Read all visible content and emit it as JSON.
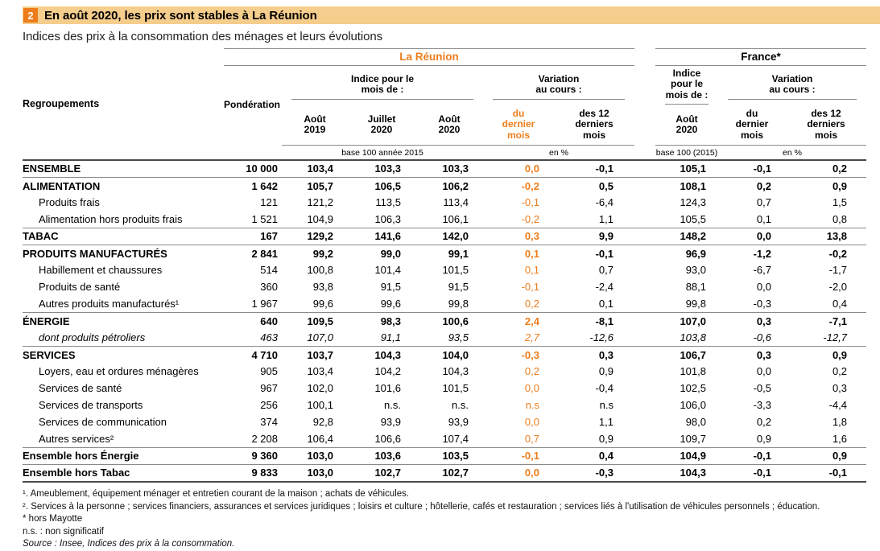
{
  "colors": {
    "orange": "#ed7d1c",
    "band": "#f5cd8c"
  },
  "header": {
    "badge": "2",
    "title": "En août 2020, les prix sont stables à La Réunion",
    "subtitle": "Indices des prix à la consommation des ménages et leurs évolutions"
  },
  "table": {
    "corner_label": "Regroupements",
    "ponderation_label": "Pondération",
    "reunion": {
      "title": "La Réunion",
      "index_group": "Indice pour le\nmois de :",
      "variation_group": "Variation\nau cours :",
      "cols": [
        "Août\n2019",
        "Juillet\n2020",
        "Août\n2020",
        "du\ndernier\nmois",
        "des 12\nderniers\nmois"
      ],
      "base_note": "base 100 année 2015",
      "unit_note": "en %"
    },
    "france": {
      "title": "France*",
      "index_group": "Indice pour le\nmois de :",
      "variation_group": "Variation\nau cours :",
      "cols": [
        "Août\n2020",
        "du\ndernier\nmois",
        "des 12\nderniers\nmois"
      ],
      "base_note": "base 100 (2015)",
      "unit_note": "en %"
    },
    "rows": [
      {
        "label": "ENSEMBLE",
        "bold": true,
        "indent": false,
        "italic": false,
        "sep": true,
        "values": [
          "10 000",
          "103,4",
          "103,3",
          "103,3",
          "0,0",
          "-0,1",
          "105,1",
          "-0,1",
          "0,2"
        ]
      },
      {
        "label": "ALIMENTATION",
        "bold": true,
        "indent": false,
        "italic": false,
        "sep": false,
        "values": [
          "1 642",
          "105,7",
          "106,5",
          "106,2",
          "-0,2",
          "0,5",
          "108,1",
          "0,2",
          "0,9"
        ]
      },
      {
        "label": "Produits frais",
        "bold": false,
        "indent": true,
        "italic": false,
        "sep": false,
        "values": [
          "121",
          "121,2",
          "113,5",
          "113,4",
          "-0,1",
          "-6,4",
          "124,3",
          "0,7",
          "1,5"
        ]
      },
      {
        "label": "Alimentation hors produits frais",
        "bold": false,
        "indent": true,
        "italic": false,
        "sep": true,
        "values": [
          "1 521",
          "104,9",
          "106,3",
          "106,1",
          "-0,2",
          "1,1",
          "105,5",
          "0,1",
          "0,8"
        ]
      },
      {
        "label": "TABAC",
        "bold": true,
        "indent": false,
        "italic": false,
        "sep": true,
        "values": [
          "167",
          "129,2",
          "141,6",
          "142,0",
          "0,3",
          "9,9",
          "148,2",
          "0,0",
          "13,8"
        ]
      },
      {
        "label": "PRODUITS MANUFACTURÉS",
        "bold": true,
        "indent": false,
        "italic": false,
        "sep": false,
        "values": [
          "2 841",
          "99,2",
          "99,0",
          "99,1",
          "0,1",
          "-0,1",
          "96,9",
          "-1,2",
          "-0,2"
        ]
      },
      {
        "label": "Habillement et chaussures",
        "bold": false,
        "indent": true,
        "italic": false,
        "sep": false,
        "values": [
          "514",
          "100,8",
          "101,4",
          "101,5",
          "0,1",
          "0,7",
          "93,0",
          "-6,7",
          "-1,7"
        ]
      },
      {
        "label": "Produits de santé",
        "bold": false,
        "indent": true,
        "italic": false,
        "sep": false,
        "values": [
          "360",
          "93,8",
          "91,5",
          "91,5",
          "-0,1",
          "-2,4",
          "88,1",
          "0,0",
          "-2,0"
        ]
      },
      {
        "label": "Autres produits manufacturés¹",
        "bold": false,
        "indent": true,
        "italic": false,
        "sep": true,
        "values": [
          "1 967",
          "99,6",
          "99,6",
          "99,8",
          "0,2",
          "0,1",
          "99,8",
          "-0,3",
          "0,4"
        ]
      },
      {
        "label": "ÉNERGIE",
        "bold": true,
        "indent": false,
        "italic": false,
        "sep": false,
        "values": [
          "640",
          "109,5",
          "98,3",
          "100,6",
          "2,4",
          "-8,1",
          "107,0",
          "0,3",
          "-7,1"
        ]
      },
      {
        "label": "dont produits pétroliers",
        "bold": false,
        "indent": true,
        "italic": true,
        "sep": true,
        "values": [
          "463",
          "107,0",
          "91,1",
          "93,5",
          "2,7",
          "-12,6",
          "103,8",
          "-0,6",
          "-12,7"
        ]
      },
      {
        "label": "SERVICES",
        "bold": true,
        "indent": false,
        "italic": false,
        "sep": false,
        "values": [
          "4 710",
          "103,7",
          "104,3",
          "104,0",
          "-0,3",
          "0,3",
          "106,7",
          "0,3",
          "0,9"
        ]
      },
      {
        "label": "Loyers, eau et ordures ménagères",
        "bold": false,
        "indent": true,
        "italic": false,
        "sep": false,
        "values": [
          "905",
          "103,4",
          "104,2",
          "104,3",
          "0,2",
          "0,9",
          "101,8",
          "0,0",
          "0,2"
        ]
      },
      {
        "label": "Services de santé",
        "bold": false,
        "indent": true,
        "italic": false,
        "sep": false,
        "values": [
          "967",
          "102,0",
          "101,6",
          "101,5",
          "0,0",
          "-0,4",
          "102,5",
          "-0,5",
          "0,3"
        ]
      },
      {
        "label": "Services de transports",
        "bold": false,
        "indent": true,
        "italic": false,
        "sep": false,
        "values": [
          "256",
          "100,1",
          "n.s.",
          "n.s.",
          "n.s",
          "n.s",
          "106,0",
          "-3,3",
          "-4,4"
        ]
      },
      {
        "label": "Services de communication",
        "bold": false,
        "indent": true,
        "italic": false,
        "sep": false,
        "values": [
          "374",
          "92,8",
          "93,9",
          "93,9",
          "0,0",
          "1,1",
          "98,0",
          "0,2",
          "1,8"
        ]
      },
      {
        "label": "Autres services²",
        "bold": false,
        "indent": true,
        "italic": false,
        "sep": true,
        "values": [
          "2 208",
          "106,4",
          "106,6",
          "107,4",
          "0,7",
          "0,9",
          "109,7",
          "0,9",
          "1,6"
        ]
      },
      {
        "label": "Ensemble hors Énergie",
        "bold": true,
        "indent": false,
        "italic": false,
        "sep": true,
        "values": [
          "9 360",
          "103,0",
          "103,6",
          "103,5",
          "-0,1",
          "0,4",
          "104,9",
          "-0,1",
          "0,9"
        ]
      },
      {
        "label": "Ensemble hors Tabac",
        "bold": true,
        "indent": false,
        "italic": false,
        "sep": false,
        "last": true,
        "values": [
          "9 833",
          "103,0",
          "102,7",
          "102,7",
          "0,0",
          "-0,3",
          "104,3",
          "-0,1",
          "-0,1"
        ]
      }
    ]
  },
  "footnotes": [
    "¹. Ameublement, équipement ménager et entretien courant de la maison ; achats de véhicules.",
    "². Services à la personne ; services financiers, assurances et services juridiques ; loisirs et culture ; hôtellerie, cafés et restauration ; services liés à l'utilisation de véhicules personnels ; éducation.",
    "* hors Mayotte",
    "n.s. : non significatif",
    "Source : Insee, Indices des prix à la consommation."
  ]
}
